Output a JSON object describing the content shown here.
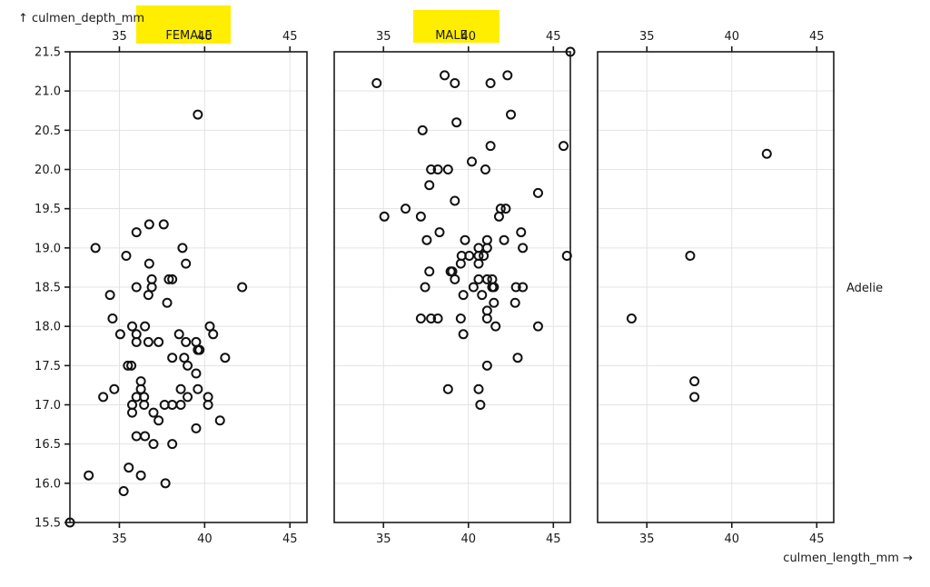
{
  "labels": {
    "y_axis_title": "↑ culmen_depth_mm",
    "x_axis_title": "culmen_length_mm →",
    "facet_female": "FEMALE",
    "facet_male": "MALE",
    "row_label": "Adelie"
  },
  "colors": {
    "highlight": "#ffee00",
    "frame": "#1a1a1a",
    "grid": "#e3e3e3",
    "point_stroke": "#111111"
  },
  "chart_data": {
    "type": "scatter",
    "title": "",
    "xlabel": "culmen_length_mm",
    "ylabel": "culmen_depth_mm",
    "xlim": [
      32.1,
      46.0
    ],
    "ylim": [
      15.5,
      21.5
    ],
    "x_ticks": [
      35,
      40,
      45
    ],
    "y_ticks": [
      15.5,
      16.0,
      16.5,
      17.0,
      17.5,
      18.0,
      18.5,
      19.0,
      19.5,
      20.0,
      20.5,
      21.0,
      21.5
    ],
    "grid": true,
    "facet_row": "Adelie",
    "facets": [
      {
        "name": "FEMALE",
        "points": [
          [
            39.6,
            20.7
          ],
          [
            36.75,
            19.3
          ],
          [
            37.6,
            19.3
          ],
          [
            36.0,
            19.2
          ],
          [
            33.6,
            19.0
          ],
          [
            38.7,
            19.0
          ],
          [
            35.4,
            18.9
          ],
          [
            36.75,
            18.8
          ],
          [
            38.9,
            18.8
          ],
          [
            36.9,
            18.6
          ],
          [
            37.9,
            18.6
          ],
          [
            38.1,
            18.6
          ],
          [
            36.0,
            18.5
          ],
          [
            36.9,
            18.5
          ],
          [
            42.2,
            18.5
          ],
          [
            34.45,
            18.4
          ],
          [
            36.7,
            18.4
          ],
          [
            37.8,
            18.3
          ],
          [
            34.6,
            18.1
          ],
          [
            35.75,
            18.0
          ],
          [
            36.5,
            18.0
          ],
          [
            40.3,
            18.0
          ],
          [
            35.05,
            17.9
          ],
          [
            36.0,
            17.9
          ],
          [
            38.5,
            17.9
          ],
          [
            40.5,
            17.9
          ],
          [
            36.0,
            17.8
          ],
          [
            36.7,
            17.8
          ],
          [
            37.3,
            17.8
          ],
          [
            38.9,
            17.8
          ],
          [
            39.5,
            17.8
          ],
          [
            39.6,
            17.7
          ],
          [
            39.7,
            17.7
          ],
          [
            38.1,
            17.6
          ],
          [
            38.8,
            17.6
          ],
          [
            41.2,
            17.6
          ],
          [
            35.5,
            17.5
          ],
          [
            35.7,
            17.5
          ],
          [
            39.0,
            17.5
          ],
          [
            39.5,
            17.4
          ],
          [
            36.26,
            17.3
          ],
          [
            34.7,
            17.2
          ],
          [
            36.26,
            17.2
          ],
          [
            38.6,
            17.2
          ],
          [
            39.6,
            17.2
          ],
          [
            34.05,
            17.1
          ],
          [
            36.0,
            17.1
          ],
          [
            36.45,
            17.1
          ],
          [
            39.0,
            17.1
          ],
          [
            40.2,
            17.1
          ],
          [
            35.75,
            17.0
          ],
          [
            36.45,
            17.0
          ],
          [
            37.65,
            17.0
          ],
          [
            38.1,
            17.0
          ],
          [
            38.6,
            17.0
          ],
          [
            40.2,
            17.0
          ],
          [
            35.75,
            16.9
          ],
          [
            37.0,
            16.9
          ],
          [
            37.3,
            16.8
          ],
          [
            40.9,
            16.8
          ],
          [
            39.5,
            16.7
          ],
          [
            36.0,
            16.6
          ],
          [
            36.5,
            16.6
          ],
          [
            37.0,
            16.5
          ],
          [
            38.1,
            16.5
          ],
          [
            35.55,
            16.2
          ],
          [
            33.2,
            16.1
          ],
          [
            36.26,
            16.1
          ],
          [
            37.7,
            16.0
          ],
          [
            35.25,
            15.9
          ],
          [
            32.1,
            15.5
          ]
        ]
      },
      {
        "name": "MALE",
        "points": [
          [
            46.0,
            21.5
          ],
          [
            38.6,
            21.2
          ],
          [
            42.3,
            21.2
          ],
          [
            34.6,
            21.1
          ],
          [
            39.2,
            21.1
          ],
          [
            41.3,
            21.1
          ],
          [
            42.5,
            20.7
          ],
          [
            39.3,
            20.6
          ],
          [
            37.3,
            20.5
          ],
          [
            41.3,
            20.3
          ],
          [
            45.6,
            20.3
          ],
          [
            40.2,
            20.1
          ],
          [
            37.8,
            20.0
          ],
          [
            38.2,
            20.0
          ],
          [
            38.8,
            20.0
          ],
          [
            41.0,
            20.0
          ],
          [
            37.7,
            19.8
          ],
          [
            44.1,
            19.7
          ],
          [
            39.2,
            19.6
          ],
          [
            36.3,
            19.5
          ],
          [
            41.9,
            19.5
          ],
          [
            42.2,
            19.5
          ],
          [
            35.05,
            19.4
          ],
          [
            37.2,
            19.4
          ],
          [
            41.8,
            19.4
          ],
          [
            38.3,
            19.2
          ],
          [
            43.1,
            19.2
          ],
          [
            37.55,
            19.1
          ],
          [
            39.8,
            19.1
          ],
          [
            41.1,
            19.1
          ],
          [
            42.1,
            19.1
          ],
          [
            40.6,
            19.0
          ],
          [
            41.1,
            19.0
          ],
          [
            43.2,
            19.0
          ],
          [
            39.6,
            18.9
          ],
          [
            40.05,
            18.9
          ],
          [
            40.6,
            18.9
          ],
          [
            40.9,
            18.9
          ],
          [
            45.8,
            18.9
          ],
          [
            39.55,
            18.8
          ],
          [
            40.6,
            18.8
          ],
          [
            37.7,
            18.7
          ],
          [
            38.95,
            18.7
          ],
          [
            39.05,
            18.7
          ],
          [
            39.2,
            18.6
          ],
          [
            40.6,
            18.6
          ],
          [
            41.1,
            18.6
          ],
          [
            41.4,
            18.6
          ],
          [
            37.45,
            18.5
          ],
          [
            40.3,
            18.5
          ],
          [
            41.4,
            18.5
          ],
          [
            41.5,
            18.5
          ],
          [
            42.8,
            18.5
          ],
          [
            43.2,
            18.5
          ],
          [
            39.7,
            18.4
          ],
          [
            40.8,
            18.4
          ],
          [
            41.5,
            18.3
          ],
          [
            42.75,
            18.3
          ],
          [
            41.1,
            18.2
          ],
          [
            37.2,
            18.1
          ],
          [
            37.8,
            18.1
          ],
          [
            38.2,
            18.1
          ],
          [
            39.55,
            18.1
          ],
          [
            41.1,
            18.1
          ],
          [
            41.6,
            18.0
          ],
          [
            44.1,
            18.0
          ],
          [
            39.7,
            17.9
          ],
          [
            42.9,
            17.6
          ],
          [
            41.1,
            17.5
          ],
          [
            38.8,
            17.2
          ],
          [
            40.6,
            17.2
          ],
          [
            40.7,
            17.0
          ]
        ]
      },
      {
        "name": "",
        "points": [
          [
            42.06,
            20.2
          ],
          [
            37.55,
            18.9
          ],
          [
            34.1,
            18.1
          ],
          [
            37.8,
            17.3
          ],
          [
            37.8,
            17.1
          ]
        ]
      }
    ]
  }
}
